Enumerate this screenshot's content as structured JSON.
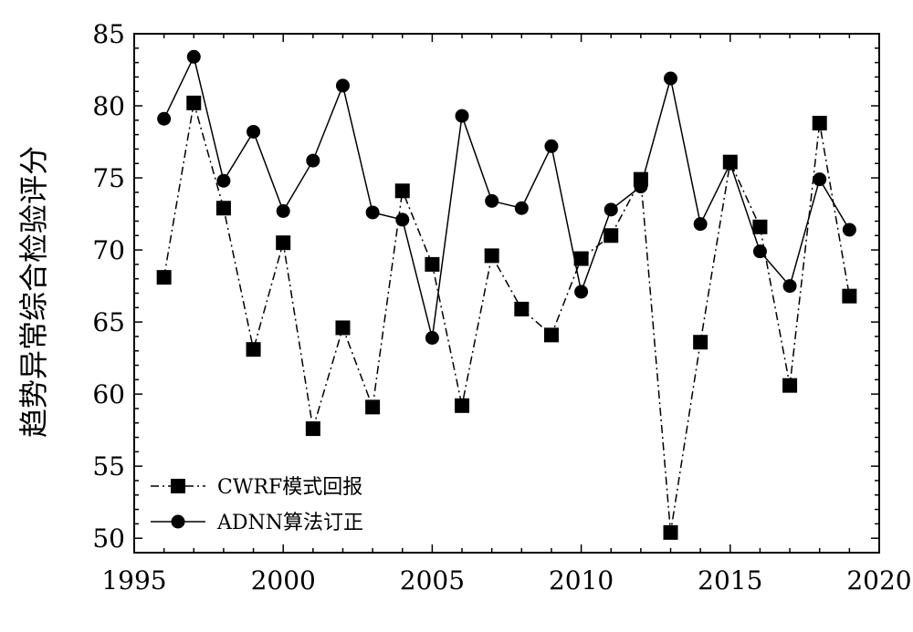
{
  "chart_data": {
    "type": "line",
    "ylabel": "趋势异常综合检验评分",
    "xlabel": "",
    "title": "",
    "xlim": [
      1995,
      2020
    ],
    "ylim": [
      49,
      85
    ],
    "xticks": [
      1995,
      2000,
      2005,
      2010,
      2015,
      2020
    ],
    "yticks": [
      50,
      55,
      60,
      65,
      70,
      75,
      80,
      85
    ],
    "grid": false,
    "legend_position": "bottom-left",
    "x": [
      1996,
      1997,
      1998,
      1999,
      2000,
      2001,
      2002,
      2003,
      2004,
      2005,
      2006,
      2007,
      2008,
      2009,
      2010,
      2011,
      2012,
      2013,
      2014,
      2015,
      2016,
      2017,
      2018,
      2019
    ],
    "series": [
      {
        "name": "CWRF模式回报",
        "marker": "square",
        "line_style": "dash-dot",
        "color": "#000000",
        "values": [
          68.1,
          80.2,
          72.9,
          63.1,
          70.5,
          57.6,
          64.6,
          59.1,
          74.1,
          69.0,
          59.2,
          69.6,
          65.9,
          64.1,
          69.4,
          71.0,
          74.9,
          50.4,
          63.6,
          76.1,
          71.6,
          60.6,
          78.8,
          66.8
        ]
      },
      {
        "name": "ADNN算法订正",
        "marker": "circle",
        "line_style": "solid",
        "color": "#000000",
        "values": [
          79.1,
          83.4,
          74.8,
          78.2,
          72.7,
          76.2,
          81.4,
          72.6,
          72.1,
          63.9,
          79.3,
          73.4,
          72.9,
          77.2,
          67.1,
          72.8,
          74.4,
          81.9,
          71.8,
          76.0,
          69.9,
          67.5,
          74.9,
          71.4
        ]
      }
    ]
  }
}
